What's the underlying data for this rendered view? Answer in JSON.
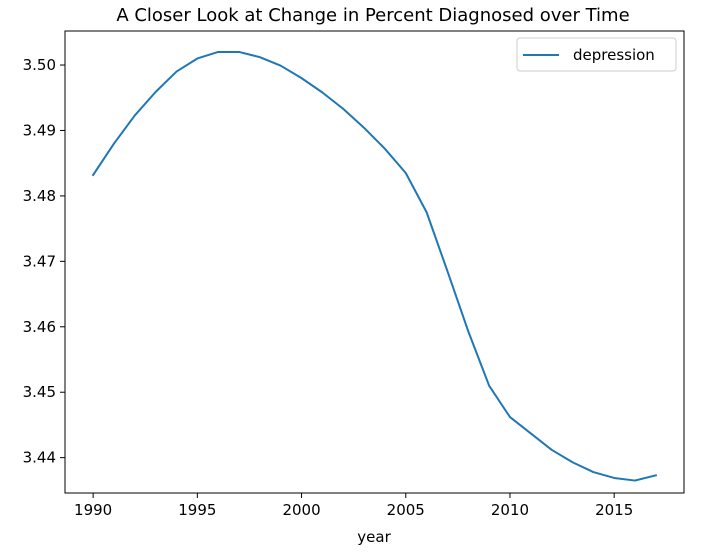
{
  "chart_data": {
    "type": "line",
    "title": "A Closer Look at Change in Percent Diagnosed over Time",
    "xlabel": "year",
    "ylabel": "",
    "xlim": [
      1988.65,
      2018.35
    ],
    "ylim": [
      3.4346,
      3.5052
    ],
    "xticks": [
      1990,
      1995,
      2000,
      2005,
      2010,
      2015
    ],
    "xtick_labels": [
      "1990",
      "1995",
      "2000",
      "2005",
      "2010",
      "2015"
    ],
    "yticks": [
      3.44,
      3.45,
      3.46,
      3.47,
      3.48,
      3.49,
      3.5
    ],
    "ytick_labels": [
      "3.44",
      "3.45",
      "3.46",
      "3.47",
      "3.48",
      "3.49",
      "3.50"
    ],
    "grid": false,
    "legend_position": "upper right",
    "series": [
      {
        "name": "depression",
        "color": "#1f77b4",
        "x": [
          1990,
          1991,
          1992,
          1993,
          1994,
          1995,
          1996,
          1997,
          1998,
          1999,
          2000,
          2001,
          2002,
          2003,
          2004,
          2005,
          2006,
          2007,
          2008,
          2009,
          2010,
          2011,
          2012,
          2013,
          2014,
          2015,
          2016,
          2017
        ],
        "y": [
          3.4832,
          3.488,
          3.4923,
          3.4959,
          3.499,
          3.501,
          3.502,
          3.502,
          3.5012,
          3.4999,
          3.498,
          3.4958,
          3.4933,
          3.4904,
          3.4872,
          3.4835,
          3.4775,
          3.4685,
          3.4593,
          3.451,
          3.4462,
          3.4437,
          3.4412,
          3.4393,
          3.4378,
          3.4369,
          3.4365,
          3.4373
        ]
      }
    ]
  }
}
